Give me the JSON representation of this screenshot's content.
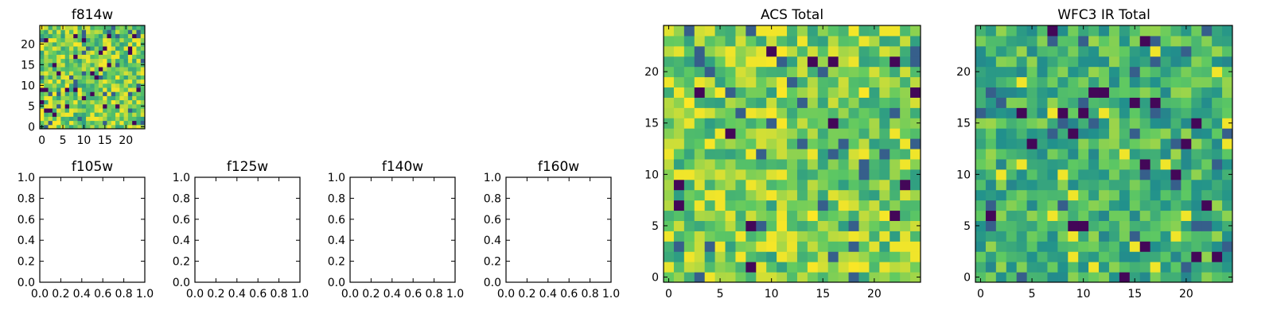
{
  "chart_data": [
    {
      "id": "f814w",
      "type": "heatmap",
      "title": "f814w",
      "grid_size": 25,
      "xlim": [
        -0.5,
        24.5
      ],
      "ylim": [
        -0.5,
        24.5
      ],
      "x_ticks": [
        0,
        5,
        10,
        15,
        20
      ],
      "y_ticks": [
        0,
        5,
        10,
        15,
        20
      ],
      "colormap": "viridis",
      "origin": "lower",
      "seed": 814,
      "note_values": "random per-pixel noise field, values normalized 0-1 (mostly 0.55-1)"
    },
    {
      "id": "f105w",
      "type": "empty",
      "title": "f105w",
      "xlim": [
        0.0,
        1.0
      ],
      "ylim": [
        0.0,
        1.0
      ],
      "x_ticks": [
        "0.0",
        "0.2",
        "0.4",
        "0.6",
        "0.8",
        "1.0"
      ],
      "y_ticks": [
        "0.0",
        "0.2",
        "0.4",
        "0.6",
        "0.8",
        "1.0"
      ]
    },
    {
      "id": "f125w",
      "type": "empty",
      "title": "f125w",
      "xlim": [
        0.0,
        1.0
      ],
      "ylim": [
        0.0,
        1.0
      ],
      "x_ticks": [
        "0.0",
        "0.2",
        "0.4",
        "0.6",
        "0.8",
        "1.0"
      ],
      "y_ticks": [
        "0.0",
        "0.2",
        "0.4",
        "0.6",
        "0.8",
        "1.0"
      ]
    },
    {
      "id": "f140w",
      "type": "empty",
      "title": "f140w",
      "xlim": [
        0.0,
        1.0
      ],
      "ylim": [
        0.0,
        1.0
      ],
      "x_ticks": [
        "0.0",
        "0.2",
        "0.4",
        "0.6",
        "0.8",
        "1.0"
      ],
      "y_ticks": [
        "0.0",
        "0.2",
        "0.4",
        "0.6",
        "0.8",
        "1.0"
      ]
    },
    {
      "id": "f160w",
      "type": "empty",
      "title": "f160w",
      "xlim": [
        0.0,
        1.0
      ],
      "ylim": [
        0.0,
        1.0
      ],
      "x_ticks": [
        "0.0",
        "0.2",
        "0.4",
        "0.6",
        "0.8",
        "1.0"
      ],
      "y_ticks": [
        "0.0",
        "0.2",
        "0.4",
        "0.6",
        "0.8",
        "1.0"
      ]
    },
    {
      "id": "acs-total",
      "type": "heatmap",
      "title": "ACS Total",
      "grid_size": 25,
      "xlim": [
        -0.5,
        24.5
      ],
      "ylim": [
        -0.5,
        24.5
      ],
      "x_ticks": [
        0,
        5,
        10,
        15,
        20
      ],
      "y_ticks": [
        0,
        5,
        10,
        15,
        20
      ],
      "colormap": "viridis",
      "origin": "lower",
      "seed": 2121,
      "note_values": "random per-pixel noise field, values normalized 0-1 (mostly 0.55-1)"
    },
    {
      "id": "wfc3-ir-total",
      "type": "heatmap",
      "title": "WFC3 IR Total",
      "grid_size": 25,
      "xlim": [
        -0.5,
        24.5
      ],
      "ylim": [
        -0.5,
        24.5
      ],
      "x_ticks": [
        0,
        5,
        10,
        15,
        20
      ],
      "y_ticks": [
        0,
        5,
        10,
        15,
        20
      ],
      "colormap": "viridis",
      "origin": "lower",
      "seed": 3737,
      "note_values": "random per-pixel noise field, values normalized 0-1 (mostly 0.45-0.85)"
    }
  ],
  "colors": {
    "viridis_stops": [
      "#440154",
      "#3b528b",
      "#21918c",
      "#5ec962",
      "#fde725"
    ],
    "axis": "#000000",
    "background": "#ffffff"
  }
}
